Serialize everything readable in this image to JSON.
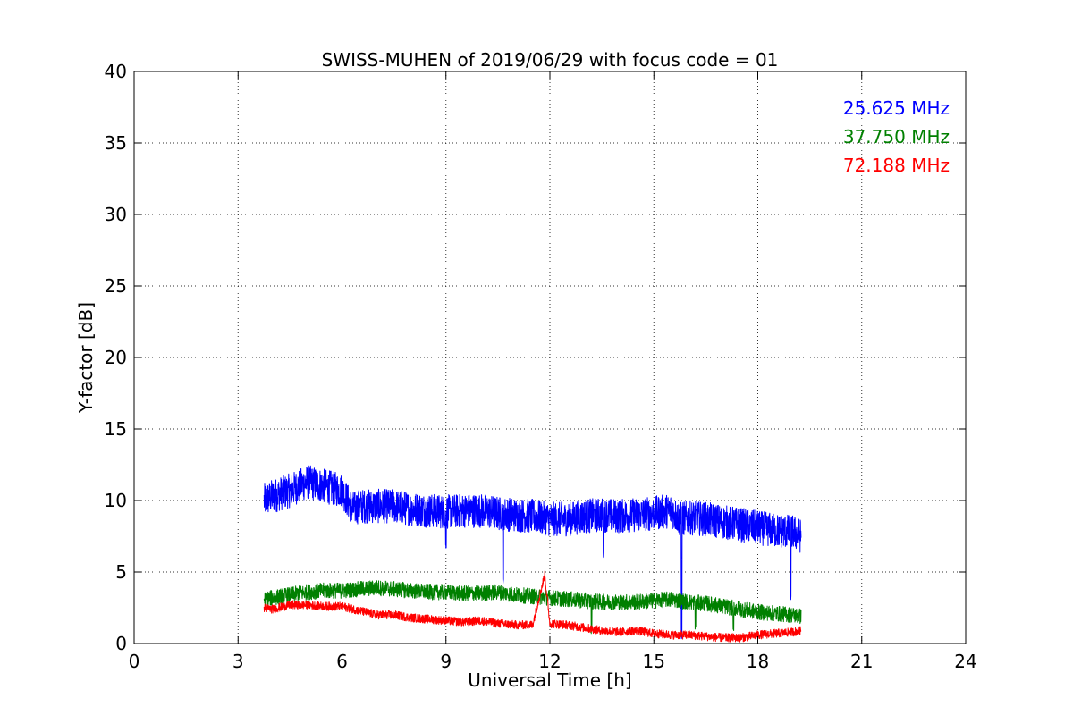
{
  "chart_data": {
    "type": "line",
    "title": "SWISS-MUHEN of 2019/06/29 with focus code = 01",
    "xlabel": "Universal Time [h]",
    "ylabel": "Y-factor [dB]",
    "xlim": [
      0,
      24
    ],
    "ylim": [
      0,
      40
    ],
    "xticks": [
      0,
      3,
      6,
      9,
      12,
      15,
      18,
      21,
      24
    ],
    "yticks": [
      0,
      5,
      10,
      15,
      20,
      25,
      30,
      35,
      40
    ],
    "grid": true,
    "legend_placement": "top-right",
    "series": [
      {
        "name": "25.625 MHz",
        "color": "#0000ff",
        "noise": 1.2,
        "x": [
          3.75,
          4.0,
          4.5,
          5.0,
          5.5,
          6.0,
          6.3,
          6.5,
          7.0,
          7.5,
          8.0,
          8.5,
          9.0,
          9.5,
          10.0,
          10.5,
          11.0,
          11.5,
          12.0,
          12.5,
          13.0,
          13.5,
          14.0,
          14.5,
          15.0,
          15.5,
          15.75,
          16.0,
          16.5,
          17.0,
          17.5,
          18.0,
          18.5,
          19.0,
          19.25
        ],
        "y": [
          10.0,
          10.3,
          10.7,
          11.3,
          11.0,
          10.7,
          9.4,
          9.6,
          9.6,
          9.6,
          9.4,
          9.3,
          9.2,
          9.3,
          9.3,
          9.1,
          9.0,
          8.9,
          8.7,
          8.7,
          8.9,
          9.0,
          8.9,
          9.0,
          9.1,
          9.3,
          8.7,
          8.8,
          8.7,
          8.5,
          8.3,
          8.1,
          7.9,
          7.8,
          7.5
        ],
        "dips": [
          [
            9.0,
            6.6
          ],
          [
            10.65,
            4.2
          ],
          [
            13.55,
            6.0
          ],
          [
            15.8,
            0.3
          ],
          [
            18.95,
            3.0
          ]
        ]
      },
      {
        "name": "37.750 MHz",
        "color": "#008000",
        "noise": 0.55,
        "x": [
          3.75,
          4.0,
          4.5,
          5.0,
          5.5,
          6.0,
          6.5,
          7.0,
          7.5,
          8.0,
          8.5,
          9.0,
          9.5,
          10.0,
          10.5,
          11.0,
          11.5,
          12.0,
          12.5,
          13.0,
          13.5,
          14.0,
          14.5,
          15.0,
          15.5,
          16.0,
          16.5,
          17.0,
          17.5,
          18.0,
          18.5,
          19.0,
          19.25
        ],
        "y": [
          3.1,
          3.2,
          3.4,
          3.6,
          3.7,
          3.7,
          3.8,
          3.9,
          3.8,
          3.7,
          3.6,
          3.6,
          3.5,
          3.5,
          3.6,
          3.4,
          3.3,
          3.2,
          3.1,
          3.0,
          2.9,
          2.9,
          2.9,
          3.0,
          3.1,
          2.9,
          2.8,
          2.6,
          2.4,
          2.2,
          2.1,
          2.0,
          1.9
        ],
        "dips": [
          [
            13.2,
            0.6
          ],
          [
            16.2,
            1.0
          ],
          [
            17.3,
            0.7
          ]
        ]
      },
      {
        "name": "72.188 MHz",
        "color": "#ff0000",
        "noise": 0.3,
        "x": [
          3.75,
          4.0,
          4.5,
          5.0,
          5.5,
          6.0,
          6.5,
          7.0,
          7.5,
          8.0,
          8.5,
          9.0,
          9.5,
          10.0,
          10.5,
          11.0,
          11.5,
          11.85,
          12.0,
          12.5,
          13.0,
          13.5,
          14.0,
          14.5,
          15.0,
          15.5,
          16.0,
          16.5,
          17.0,
          17.5,
          18.0,
          18.5,
          19.0,
          19.25
        ],
        "y": [
          2.5,
          2.4,
          2.7,
          2.7,
          2.6,
          2.6,
          2.3,
          2.0,
          2.0,
          1.8,
          1.7,
          1.6,
          1.5,
          1.6,
          1.4,
          1.3,
          1.3,
          4.8,
          1.4,
          1.3,
          1.1,
          0.9,
          0.8,
          0.9,
          0.7,
          0.6,
          0.6,
          0.5,
          0.4,
          0.4,
          0.6,
          0.7,
          0.8,
          0.9
        ],
        "dips": []
      }
    ]
  }
}
